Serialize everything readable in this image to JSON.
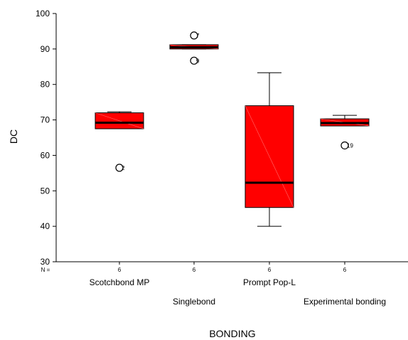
{
  "chart_data": {
    "type": "boxplot",
    "xlabel": "BONDING",
    "ylabel": "DC",
    "ylim": [
      30,
      100
    ],
    "yticks": [
      30,
      40,
      50,
      60,
      70,
      80,
      90,
      100
    ],
    "n_label": "N =",
    "fill_color": "#ff0000",
    "categories": [
      "Scotchbond MP",
      "Singlebond",
      "Prompt Pop-L",
      "Experimental bonding"
    ],
    "series": [
      {
        "category": "Scotchbond MP",
        "n": "6",
        "whisker_low": 67.5,
        "q1": 67.5,
        "median": 69.2,
        "q3": 72.0,
        "whisker_high": 72.3,
        "outliers": [
          {
            "value": 56.5,
            "label": "2"
          }
        ]
      },
      {
        "category": "Singlebond",
        "n": "6",
        "whisker_low": 90.0,
        "q1": 90.0,
        "median": 90.5,
        "q3": 91.2,
        "whisker_high": 91.2,
        "outliers": [
          {
            "value": 93.8,
            "label": "7"
          },
          {
            "value": 86.7,
            "label": "9"
          }
        ]
      },
      {
        "category": "Prompt Pop-L",
        "n": "6",
        "whisker_low": 40.0,
        "q1": 45.3,
        "median": 52.3,
        "q3": 74.0,
        "whisker_high": 83.3,
        "outliers": []
      },
      {
        "category": "Experimental bonding",
        "n": "6",
        "whisker_low": 68.3,
        "q1": 68.3,
        "median": 69.1,
        "q3": 70.3,
        "whisker_high": 71.3,
        "outliers": [
          {
            "value": 62.8,
            "label": "19"
          }
        ]
      }
    ]
  }
}
